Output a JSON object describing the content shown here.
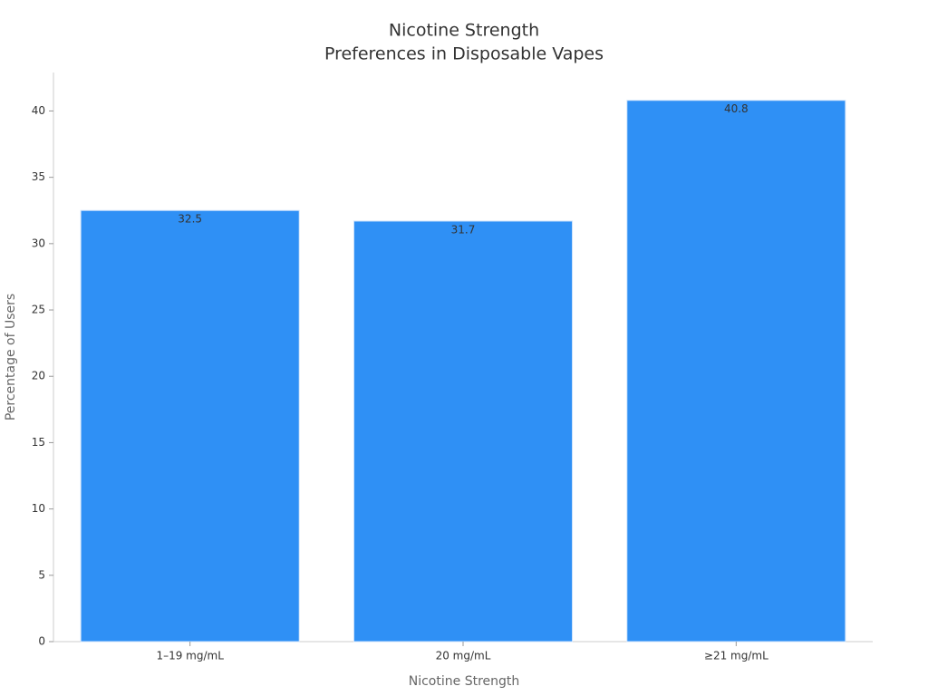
{
  "chart_data": {
    "type": "bar",
    "title": [
      "Nicotine Strength",
      "Preferences in Disposable Vapes"
    ],
    "x_label": "Nicotine Strength",
    "y_label": "Percentage of Users",
    "categories": [
      "1–19 mg/mL",
      "20 mg/mL",
      "≥21 mg/mL"
    ],
    "values": [
      32.5,
      31.7,
      40.8
    ],
    "color": "#2f90f5",
    "ylim": [
      0,
      42.9
    ],
    "yticks": [
      0,
      5,
      10,
      15,
      20,
      25,
      30,
      35,
      40
    ]
  }
}
